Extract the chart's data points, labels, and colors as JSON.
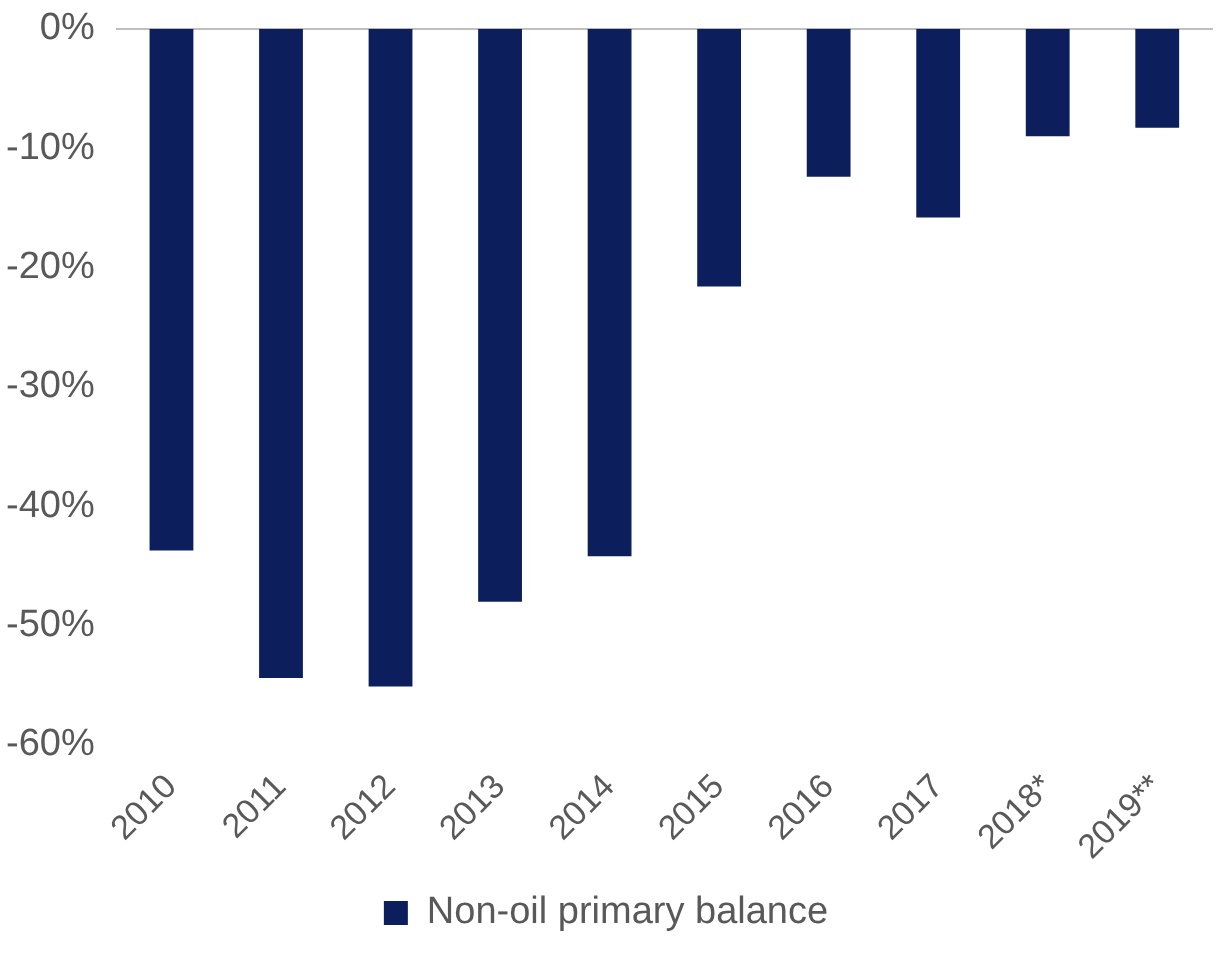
{
  "chart_data": {
    "type": "bar",
    "categories": [
      "2010",
      "2011",
      "2012",
      "2013",
      "2014",
      "2015",
      "2016",
      "2017",
      "2018*",
      "2019**"
    ],
    "series": [
      {
        "name": "Non-oil primary balance",
        "color": "#0c1f5c",
        "values": [
          -43.7,
          -54.4,
          -55.1,
          -48.0,
          -44.2,
          -21.6,
          -12.4,
          -15.8,
          -9.0,
          -8.3
        ]
      }
    ],
    "ylim": [
      -60,
      0
    ],
    "yticks": [
      {
        "value": 0,
        "label": "0%"
      },
      {
        "value": -10,
        "label": "-10%"
      },
      {
        "value": -20,
        "label": "-20%"
      },
      {
        "value": -30,
        "label": "-30%"
      },
      {
        "value": -40,
        "label": "-40%"
      },
      {
        "value": -50,
        "label": "-50%"
      },
      {
        "value": -60,
        "label": "-60%"
      }
    ],
    "grid": false,
    "legend": "bottom"
  }
}
